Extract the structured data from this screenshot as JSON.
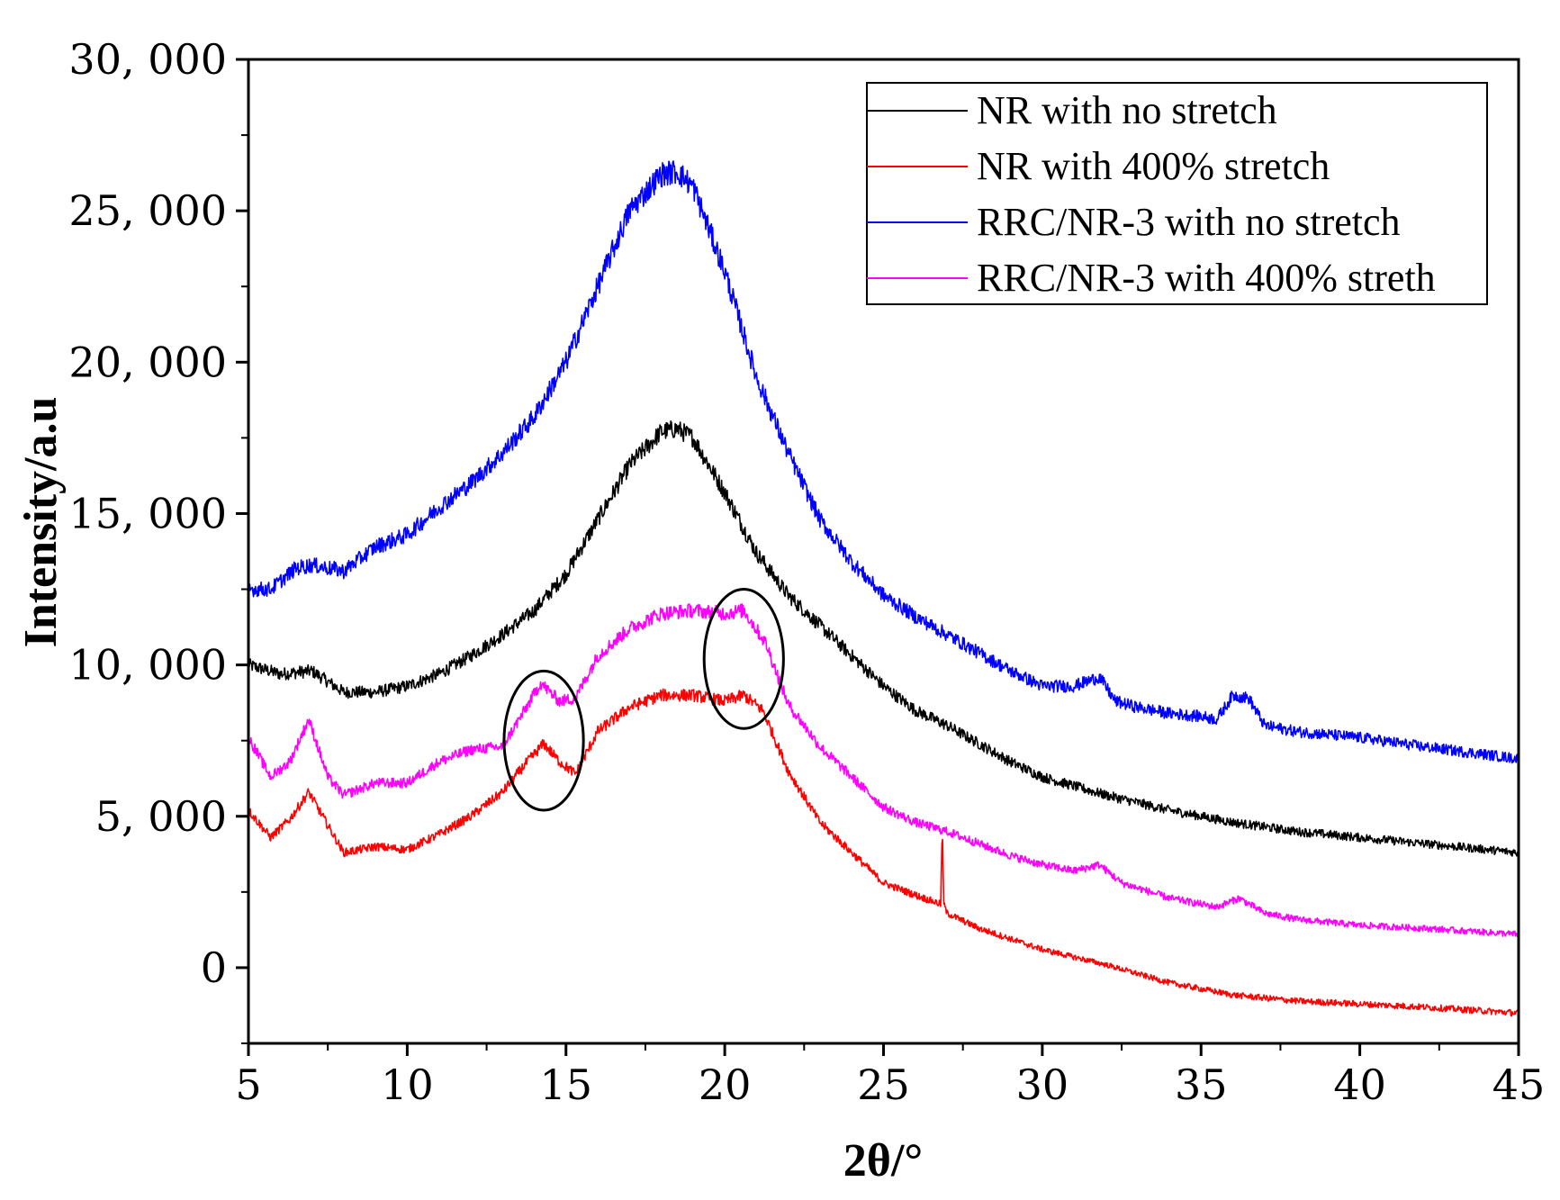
{
  "chart_data": {
    "type": "line",
    "title": "",
    "xlabel": "2θ/°",
    "ylabel": "Intensity/a.u",
    "xlim": [
      5,
      45
    ],
    "ylim": [
      -2500,
      30000
    ],
    "xticks": [
      5,
      10,
      15,
      20,
      25,
      30,
      35,
      40,
      45
    ],
    "xtick_labels": [
      "5",
      "10",
      "15",
      "20",
      "25",
      "30",
      "35",
      "40",
      "45"
    ],
    "yticks": [
      0,
      5000,
      10000,
      15000,
      20000,
      25000,
      30000
    ],
    "ytick_labels": [
      "0",
      "5, 000",
      "10, 000",
      "15, 000",
      "20, 000",
      "25, 000",
      "30, 000"
    ],
    "grid": false,
    "legend_position": "top-right",
    "series": [
      {
        "name": "NR with no stretch",
        "color": "#000000",
        "x": [
          5,
          6,
          7,
          8,
          9,
          10,
          11,
          12,
          13,
          14,
          15,
          16,
          17,
          18,
          18.5,
          19,
          20,
          21,
          22,
          23,
          24,
          25,
          26,
          27,
          28,
          29,
          30,
          32,
          34,
          36,
          38,
          40,
          42,
          45
        ],
        "y": [
          10000,
          9700,
          9800,
          9100,
          9100,
          9300,
          9700,
          10300,
          11000,
          11800,
          13000,
          14800,
          16600,
          17700,
          17800,
          17500,
          15700,
          13700,
          12300,
          11300,
          10300,
          9300,
          8500,
          8000,
          7400,
          6800,
          6300,
          5700,
          5200,
          4800,
          4500,
          4300,
          4100,
          3800
        ]
      },
      {
        "name": "NR with 400% stretch",
        "color": "#ff0000",
        "x": [
          5,
          5.7,
          6.3,
          6.9,
          7.5,
          8,
          9,
          10,
          11,
          12,
          13,
          13.7,
          14.3,
          14.8,
          15.3,
          16,
          17,
          18,
          19,
          20,
          20.6,
          21.2,
          22,
          23,
          24,
          25,
          26,
          26.8,
          26.85,
          26.9,
          27,
          28,
          30,
          32,
          34,
          36,
          38,
          40,
          42,
          45
        ],
        "y": [
          5200,
          4300,
          4900,
          5800,
          4700,
          3800,
          4000,
          3900,
          4400,
          5000,
          5800,
          6700,
          7400,
          6800,
          6400,
          7800,
          8600,
          9000,
          9000,
          8800,
          9000,
          8500,
          6500,
          4800,
          3800,
          2800,
          2400,
          2100,
          4600,
          2100,
          1800,
          1300,
          600,
          100,
          -500,
          -900,
          -1100,
          -1200,
          -1300,
          -1500
        ]
      },
      {
        "name": "RRC/NR-3 with no stretch",
        "color": "#0000ff",
        "x": [
          5,
          5.7,
          6.5,
          7,
          8,
          9,
          10,
          11,
          12,
          13,
          14,
          15,
          16,
          17,
          18,
          18.5,
          19,
          20,
          21,
          22,
          23,
          24,
          25,
          26,
          27,
          28,
          29,
          30,
          31,
          31.8,
          32.3,
          33,
          34,
          35,
          35.5,
          36,
          36.5,
          37,
          38,
          40,
          42,
          45
        ],
        "y": [
          12500,
          12500,
          13200,
          13300,
          13100,
          13900,
          14300,
          15200,
          16000,
          17000,
          18200,
          20000,
          22500,
          25000,
          26200,
          26300,
          25800,
          23000,
          19500,
          17000,
          14800,
          13400,
          12300,
          11600,
          11000,
          10400,
          9800,
          9300,
          9300,
          9600,
          8800,
          8600,
          8400,
          8300,
          8200,
          9000,
          8900,
          8000,
          7800,
          7600,
          7300,
          6900
        ]
      },
      {
        "name": "RRC/NR-3 with 400% streth",
        "color": "#ff00ff",
        "x": [
          5,
          5.7,
          6.3,
          6.9,
          7.5,
          8,
          9,
          10,
          11,
          12,
          13,
          13.7,
          14.2,
          14.8,
          15.3,
          16,
          17,
          18,
          19,
          20,
          20.6,
          21.3,
          22,
          23,
          24,
          25,
          26,
          27,
          28,
          29,
          30,
          31,
          31.8,
          32.5,
          34,
          35.5,
          36.2,
          37,
          38,
          40,
          42,
          45
        ],
        "y": [
          7600,
          6300,
          6800,
          8200,
          6300,
          5700,
          6100,
          6100,
          6800,
          7200,
          7300,
          8500,
          9400,
          8800,
          8900,
          10300,
          11200,
          11700,
          11800,
          11700,
          11800,
          10700,
          8700,
          7300,
          6300,
          5300,
          4800,
          4500,
          4100,
          3700,
          3400,
          3200,
          3400,
          2800,
          2300,
          2000,
          2300,
          1800,
          1600,
          1400,
          1300,
          1100
        ]
      }
    ],
    "annotations": [
      {
        "type": "ellipse",
        "cx": 14.3,
        "cy": 7500,
        "rx": 1.25,
        "ry": 2300,
        "label": ""
      },
      {
        "type": "ellipse",
        "cx": 20.6,
        "cy": 10200,
        "rx": 1.25,
        "ry": 2300,
        "label": ""
      }
    ]
  }
}
